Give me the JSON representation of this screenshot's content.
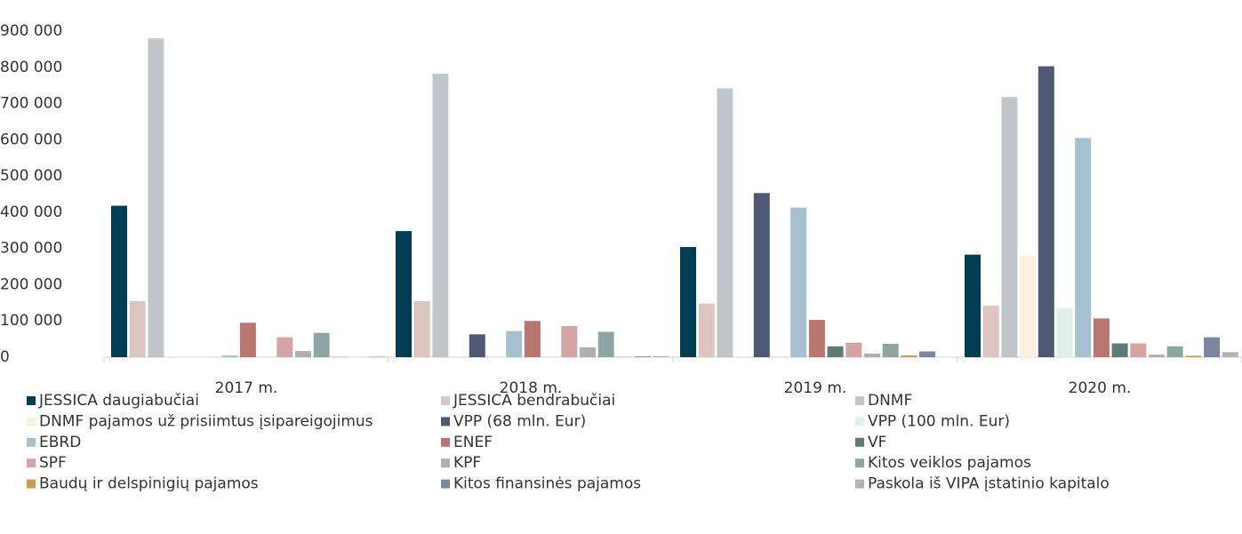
{
  "chart_data": {
    "type": "bar",
    "categories": [
      "2017 m.",
      "2018 m.",
      "2019 m.",
      "2020 m."
    ],
    "series": [
      {
        "name": "JESSICA daugiabučiai",
        "color": "#003f52",
        "values": [
          418000,
          348000,
          304000,
          283000
        ]
      },
      {
        "name": "JESSICA bendrabučiai",
        "color": "#dcc6c0",
        "values": [
          155000,
          155000,
          148000,
          142000
        ]
      },
      {
        "name": "DNMF",
        "color": "#c0c6ca",
        "values": [
          880000,
          782000,
          742000,
          718000
        ]
      },
      {
        "name": "DNMF pajamos už prisiimtus įsipareigojimus",
        "color": "#fdeee0",
        "values": [
          0,
          0,
          0,
          281000
        ]
      },
      {
        "name": "VPP (68 mln. Eur)",
        "color": "#4e5a75",
        "values": [
          0,
          63000,
          453000,
          803000
        ]
      },
      {
        "name": "VPP (100 mln. Eur)",
        "color": "#dff1e6",
        "values": [
          0,
          0,
          0,
          135000
        ]
      },
      {
        "name": "EBRD",
        "color": "#a8c1ce",
        "values": [
          5000,
          72000,
          413000,
          605000
        ]
      },
      {
        "name": "ENEF",
        "color": "#b9756f",
        "values": [
          95000,
          100000,
          103000,
          107000
        ]
      },
      {
        "name": "VF",
        "color": "#5e7b78",
        "values": [
          0,
          0,
          30000,
          38000
        ]
      },
      {
        "name": "SPF",
        "color": "#d4a5a3",
        "values": [
          55000,
          86000,
          40000,
          38000
        ]
      },
      {
        "name": "KPF",
        "color": "#afafaf",
        "values": [
          17000,
          27000,
          10000,
          7000
        ]
      },
      {
        "name": "Kitos veiklos pajamos",
        "color": "#8fa5a3",
        "values": [
          67000,
          70000,
          37000,
          30000
        ]
      },
      {
        "name": "Baudų ir delspinigių pajamos",
        "color": "#c8a04a",
        "values": [
          1000,
          1000,
          5000,
          4000
        ]
      },
      {
        "name": "Kitos finansinės pajamos",
        "color": "#7a879f",
        "values": [
          0,
          2000,
          16000,
          55000
        ]
      },
      {
        "name": "Paskola iš VIPA įstatinio kapitalo",
        "color": "#b4b4b4",
        "values": [
          2000,
          3000,
          0,
          14000
        ]
      }
    ],
    "ylim": [
      0,
      900000
    ],
    "yticks": [
      0,
      {
        "value": 100000,
        "label": "100 000"
      },
      {
        "value": 200000,
        "label": "200 000"
      },
      {
        "value": 300000,
        "label": "300 000"
      },
      {
        "value": 400000,
        "label": "400 000"
      },
      {
        "value": 500000,
        "label": "500 000"
      },
      {
        "value": 600000,
        "label": "600 000"
      },
      {
        "value": 700000,
        "label": "700 000"
      },
      {
        "value": 800000,
        "label": "800 000"
      },
      {
        "value": 900000,
        "label": "900 000"
      }
    ],
    "grid": false,
    "legend": "bottom"
  }
}
